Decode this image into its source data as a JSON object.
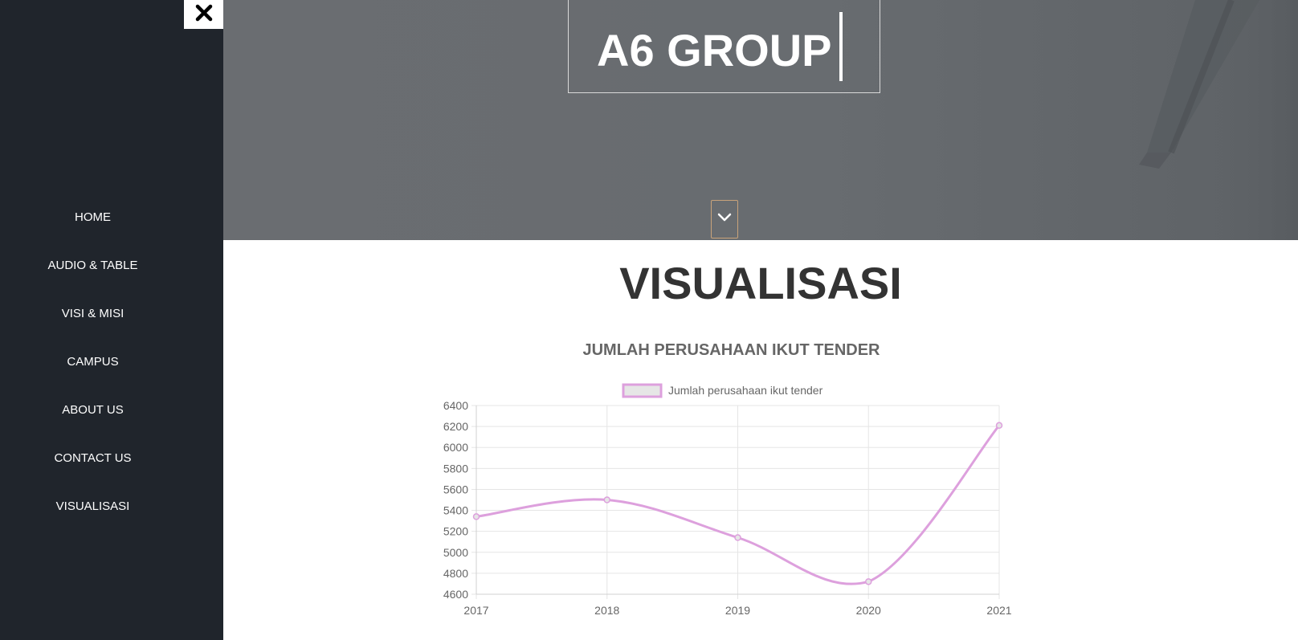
{
  "sidebar": {
    "close_label": "✖",
    "items": [
      {
        "label": "HOME"
      },
      {
        "label": "AUDIO & TABLE"
      },
      {
        "label": "VISI & MISI"
      },
      {
        "label": "CAMPUS"
      },
      {
        "label": "ABOUT US"
      },
      {
        "label": "CONTACT US"
      },
      {
        "label": "VISUALISASI"
      }
    ]
  },
  "hero": {
    "brand": "A6 GROUP",
    "scroll_icon": "chevron-down-icon"
  },
  "section": {
    "title": "VISUALISASI"
  },
  "colors": {
    "sidebar_bg": "#20252c",
    "series_line": "#dda0dd",
    "legend_fill": "#e6e6e6"
  },
  "chart_data": {
    "type": "line",
    "title": "JUMLAH PERUSAHAAN IKUT TENDER",
    "categories": [
      "2017",
      "2018",
      "2019",
      "2020",
      "2021"
    ],
    "series": [
      {
        "name": "Jumlah perusahaan ikut tender",
        "values": [
          5340,
          5500,
          5140,
          4720,
          6210
        ]
      }
    ],
    "yticks": [
      4600,
      4800,
      5000,
      5200,
      5400,
      5600,
      5800,
      6000,
      6200,
      6400
    ],
    "ylim": [
      4600,
      6400
    ],
    "grid": true,
    "legend": "top"
  }
}
